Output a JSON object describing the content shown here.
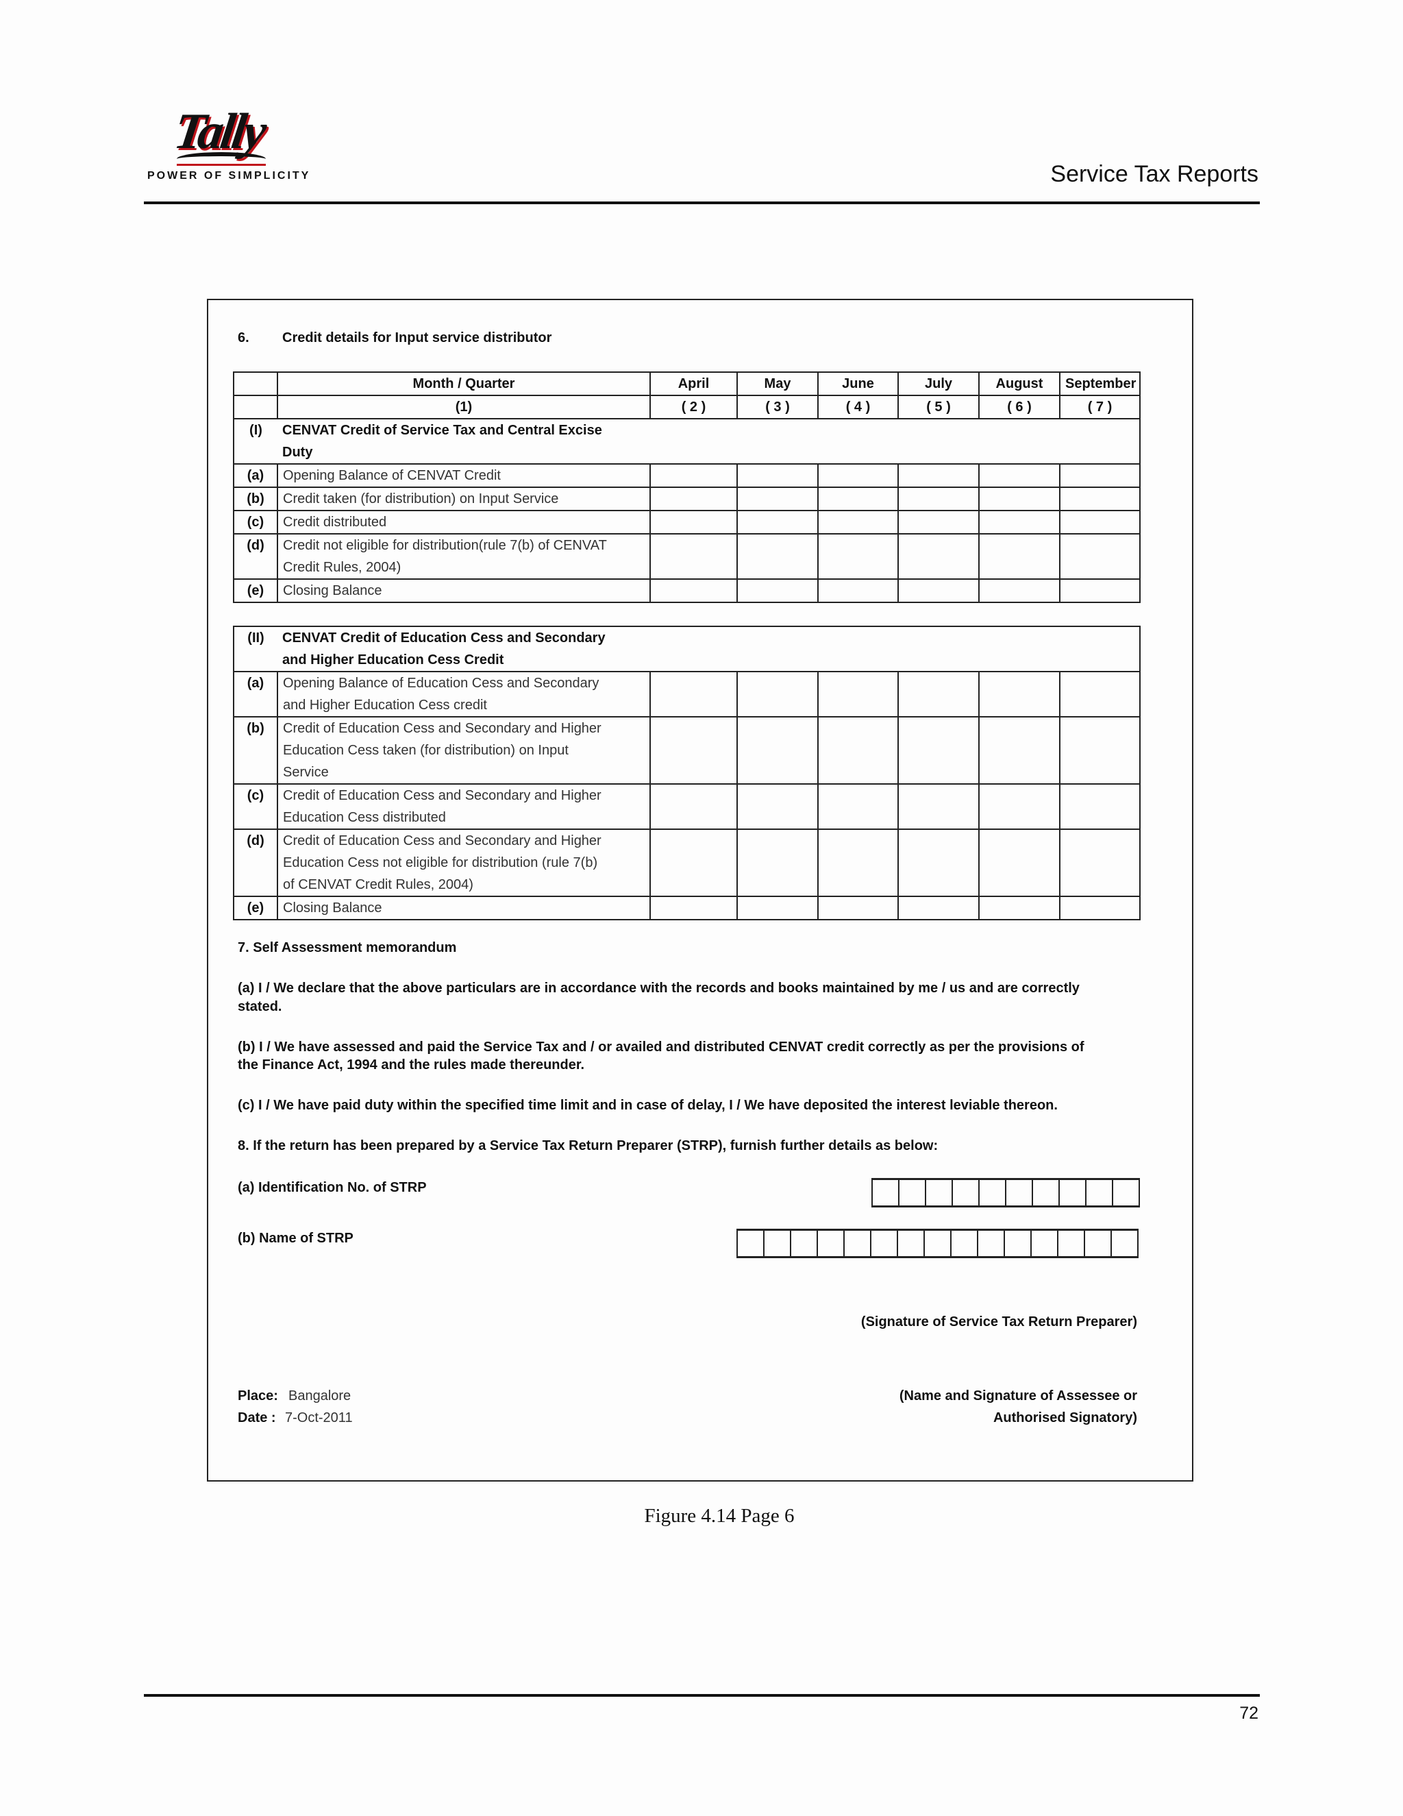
{
  "header": {
    "logo_text": "Tally",
    "tagline": "POWER OF SIMPLICITY",
    "title": "Service Tax Reports"
  },
  "section6": {
    "number": "6.",
    "title": "Credit details for Input service distributor",
    "columns": [
      "Month / Quarter",
      "April",
      "May",
      "June",
      "July",
      "August",
      "September"
    ],
    "column_numbers": [
      "(1)",
      "( 2 )",
      "( 3 )",
      "( 4 )",
      "( 5 )",
      "( 6 )",
      "( 7 )"
    ],
    "part1": {
      "label": "(I)",
      "title": "CENVAT Credit of Service Tax and Central Excise\nDuty",
      "rows": [
        {
          "label": "(a)",
          "text": "Opening Balance of CENVAT Credit"
        },
        {
          "label": "(b)",
          "text": "Credit taken (for distribution) on Input Service"
        },
        {
          "label": "(c)",
          "text": "Credit distributed"
        },
        {
          "label": "(d)",
          "text": "Credit not eligible for distribution(rule 7(b) of CENVAT\nCredit Rules, 2004)"
        },
        {
          "label": "(e)",
          "text": "Closing Balance"
        }
      ]
    },
    "part2": {
      "label": "(II)",
      "title": "CENVAT Credit of Education Cess and Secondary\nand Higher Education Cess Credit",
      "rows": [
        {
          "label": "(a)",
          "text": "Opening Balance of Education Cess and Secondary\nand Higher Education Cess credit"
        },
        {
          "label": "(b)",
          "text": "Credit of Education Cess and Secondary and Higher\nEducation Cess taken (for distribution) on Input\nService"
        },
        {
          "label": "(c)",
          "text": "Credit of Education Cess and Secondary and Higher\nEducation Cess distributed"
        },
        {
          "label": "(d)",
          "text": "Credit of Education Cess and Secondary and Higher\nEducation Cess not eligible for distribution (rule 7(b)\nof CENVAT Credit Rules, 2004)"
        },
        {
          "label": "(e)",
          "text": "Closing Balance"
        }
      ]
    }
  },
  "section7": {
    "title": "7. Self Assessment memorandum",
    "para_a_1": "(a) I / We declare that the above particulars are in accordance with the records and books maintained by me / us and are correctly",
    "para_a_2": "stated.",
    "para_b_1": "(b) I / We have assessed and paid the Service Tax and / or availed and distributed CENVAT credit correctly as per the provisions of",
    "para_b_2": "the Finance Act, 1994 and the rules made thereunder.",
    "para_c": "(c) I / We have paid duty within the specified time limit and in case of delay, I / We have deposited the interest leviable thereon."
  },
  "section8": {
    "title": "8. If the return has been prepared by a Service Tax Return Preparer (STRP), furnish further details as below:",
    "id_label": "(a) Identification No. of STRP",
    "name_label": "(b) Name of STRP",
    "preparer_signature": "(Signature of Service Tax Return Preparer)"
  },
  "footer_block": {
    "place_label": "Place:",
    "place_value": "Bangalore",
    "date_label": "Date :",
    "date_value": "7-Oct-2011",
    "assessee_signature_1": "(Name and Signature of Assessee or",
    "assessee_signature_2": "Authorised Signatory)"
  },
  "caption": "Figure 4.14  Page 6",
  "page_number": "72"
}
